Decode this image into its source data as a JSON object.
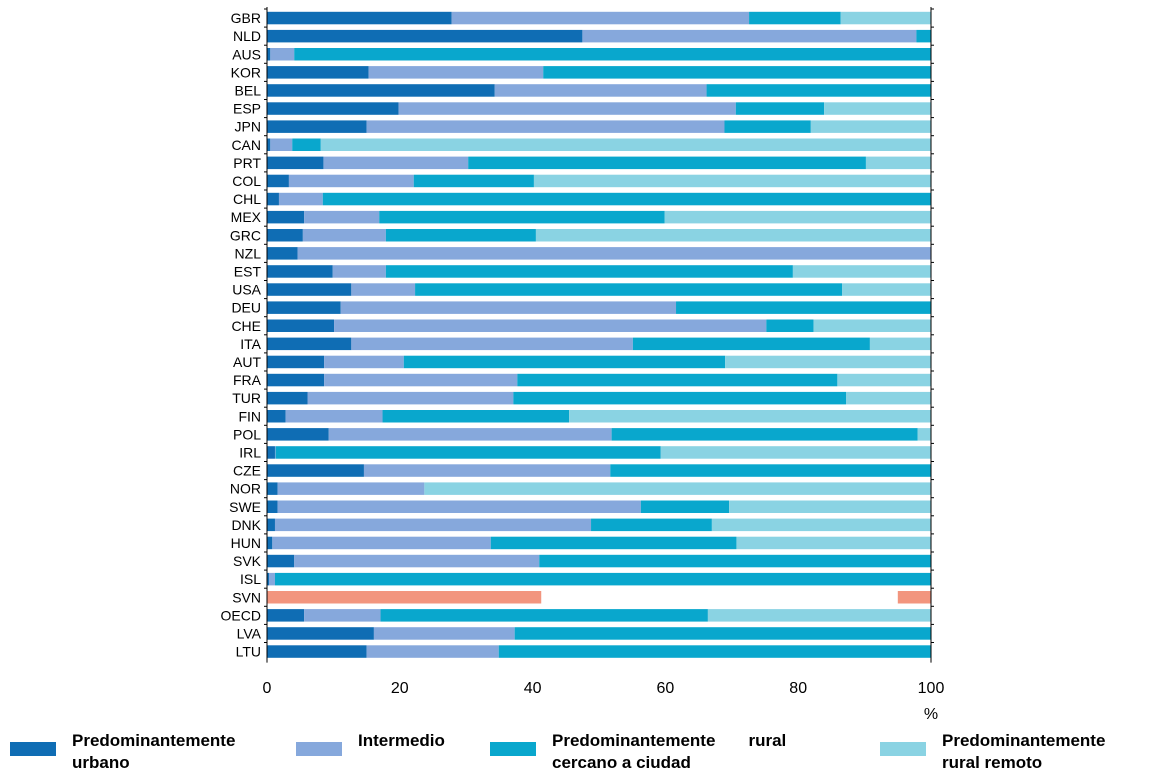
{
  "chart_data": {
    "type": "bar",
    "orientation": "horizontal",
    "stacked": true,
    "categories": [
      "GBR",
      "NLD",
      "AUS",
      "KOR",
      "BEL",
      "ESP",
      "JPN",
      "CAN",
      "PRT",
      "COL",
      "CHL",
      "MEX",
      "GRC",
      "NZL",
      "EST",
      "USA",
      "DEU",
      "CHE",
      "ITA",
      "AUT",
      "FRA",
      "TUR",
      "FIN",
      "POL",
      "IRL",
      "CZE",
      "NOR",
      "SWE",
      "DNK",
      "HUN",
      "SVK",
      "ISL",
      "SVN",
      "OECD",
      "LVA",
      "LTU"
    ],
    "series": [
      {
        "name": "Predominantemente urbano",
        "color": "#0F6DB4",
        "values": [
          27.8,
          47.5,
          0.5,
          15.3,
          34.3,
          19.8,
          15.0,
          0.5,
          8.5,
          3.3,
          1.8,
          5.6,
          5.4,
          4.6,
          9.9,
          12.7,
          11.1,
          10.1,
          12.7,
          8.6,
          8.6,
          6.1,
          2.8,
          9.3,
          1.2,
          14.6,
          1.6,
          1.6,
          1.2,
          0.8,
          4.1,
          0.3,
          0,
          5.6,
          16.1,
          15.0
        ]
      },
      {
        "name": "Intermedio",
        "color": "#86A8DC",
        "values": [
          44.8,
          50.3,
          3.6,
          26.3,
          31.9,
          50.8,
          53.9,
          3.3,
          21.8,
          18.8,
          6.6,
          11.3,
          12.5,
          95.4,
          8.0,
          9.6,
          50.5,
          65.1,
          42.4,
          12.0,
          29.1,
          31.0,
          14.6,
          42.6,
          0.1,
          37.1,
          22.1,
          54.7,
          47.6,
          32.9,
          36.9,
          0.9,
          0,
          11.5,
          21.2,
          19.9
        ]
      },
      {
        "name": "Predominantemente rural cercano a ciudad",
        "color": "#09A7CD",
        "values": [
          13.8,
          2.2,
          95.9,
          58.4,
          33.8,
          13.3,
          13.0,
          4.3,
          59.9,
          18.1,
          91.6,
          43.0,
          22.6,
          0,
          61.3,
          64.3,
          38.4,
          7.1,
          35.7,
          48.4,
          48.2,
          50.1,
          28.1,
          46.1,
          58.0,
          48.3,
          0,
          13.3,
          18.2,
          37.0,
          59.0,
          98.8,
          0,
          49.3,
          62.7,
          65.1
        ]
      },
      {
        "name": "Predominantemente rural remoto",
        "color": "#8AD3E3",
        "values": [
          13.6,
          0,
          0,
          0,
          0,
          16.1,
          18.1,
          91.9,
          9.8,
          59.8,
          0,
          40.1,
          59.5,
          0,
          20.8,
          13.4,
          0,
          17.7,
          9.2,
          31.0,
          14.1,
          12.8,
          54.5,
          2.0,
          40.7,
          0,
          76.3,
          30.4,
          33.0,
          29.3,
          0,
          0,
          0,
          33.6,
          0,
          0
        ]
      }
    ],
    "highlight": {
      "category": "SVN",
      "color": "#F2957E",
      "segments": [
        [
          0,
          41.3
        ],
        [
          95.0,
          100
        ]
      ]
    },
    "xlim": [
      0,
      100
    ],
    "xticks": [
      0,
      20,
      40,
      60,
      80,
      100
    ],
    "xlabel": "%",
    "grid": false,
    "legend_position": "bottom"
  },
  "legend": [
    {
      "label": "Predominantemente\nurbano"
    },
    {
      "label": "Intermedio"
    },
    {
      "label": "Predominantemente       rural\ncercano a ciudad"
    },
    {
      "label": "Predominantemente\nrural remoto"
    }
  ]
}
